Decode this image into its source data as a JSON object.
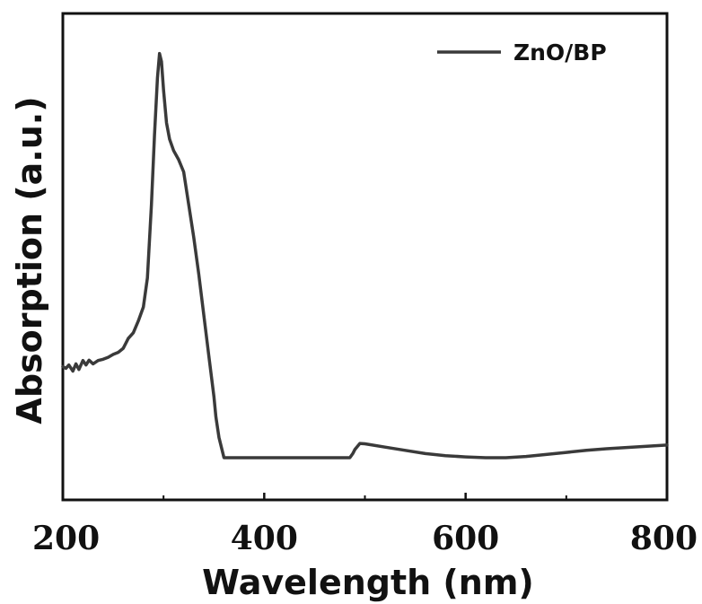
{
  "chart_data": {
    "type": "line",
    "xlabel": "Wavelength (nm)",
    "ylabel": "Absorption  (a.u.)",
    "xlim": [
      200,
      800
    ],
    "ylim": [
      0,
      1
    ],
    "x_ticks": [
      200,
      400,
      600,
      800
    ],
    "x_minor_ticks": [
      300,
      500,
      700
    ],
    "y_ticks_shown": false,
    "grid": false,
    "legend_position": "top-right",
    "line_color": "#3a3a3a",
    "series": [
      {
        "name": "ZnO/BP",
        "x": [
          200,
          203,
          206,
          210,
          213,
          216,
          220,
          223,
          226,
          230,
          235,
          240,
          245,
          250,
          255,
          260,
          265,
          270,
          275,
          280,
          284,
          288,
          291,
          294,
          296,
          298,
          300,
          303,
          306,
          310,
          315,
          320,
          325,
          330,
          335,
          340,
          345,
          350,
          352,
          355,
          360,
          380,
          400,
          420,
          440,
          460,
          480,
          485,
          488,
          490,
          495,
          500,
          520,
          540,
          560,
          580,
          600,
          620,
          640,
          660,
          680,
          700,
          720,
          740,
          760,
          780,
          800
        ],
        "values": [
          0.223,
          0.219,
          0.227,
          0.212,
          0.23,
          0.216,
          0.238,
          0.227,
          0.239,
          0.23,
          0.238,
          0.241,
          0.246,
          0.253,
          0.258,
          0.268,
          0.292,
          0.306,
          0.335,
          0.369,
          0.44,
          0.62,
          0.79,
          0.93,
          0.99,
          0.97,
          0.9,
          0.82,
          0.78,
          0.752,
          0.73,
          0.7,
          0.62,
          0.54,
          0.45,
          0.35,
          0.25,
          0.15,
          0.1,
          0.05,
          0.0,
          0.0,
          0.0,
          0.0,
          0.0,
          0.0,
          0.0,
          0.0,
          0.01,
          0.02,
          0.035,
          0.034,
          0.026,
          0.018,
          0.01,
          0.005,
          0.002,
          0.0,
          0.0,
          0.003,
          0.008,
          0.013,
          0.018,
          0.022,
          0.025,
          0.028,
          0.031
        ]
      }
    ]
  }
}
